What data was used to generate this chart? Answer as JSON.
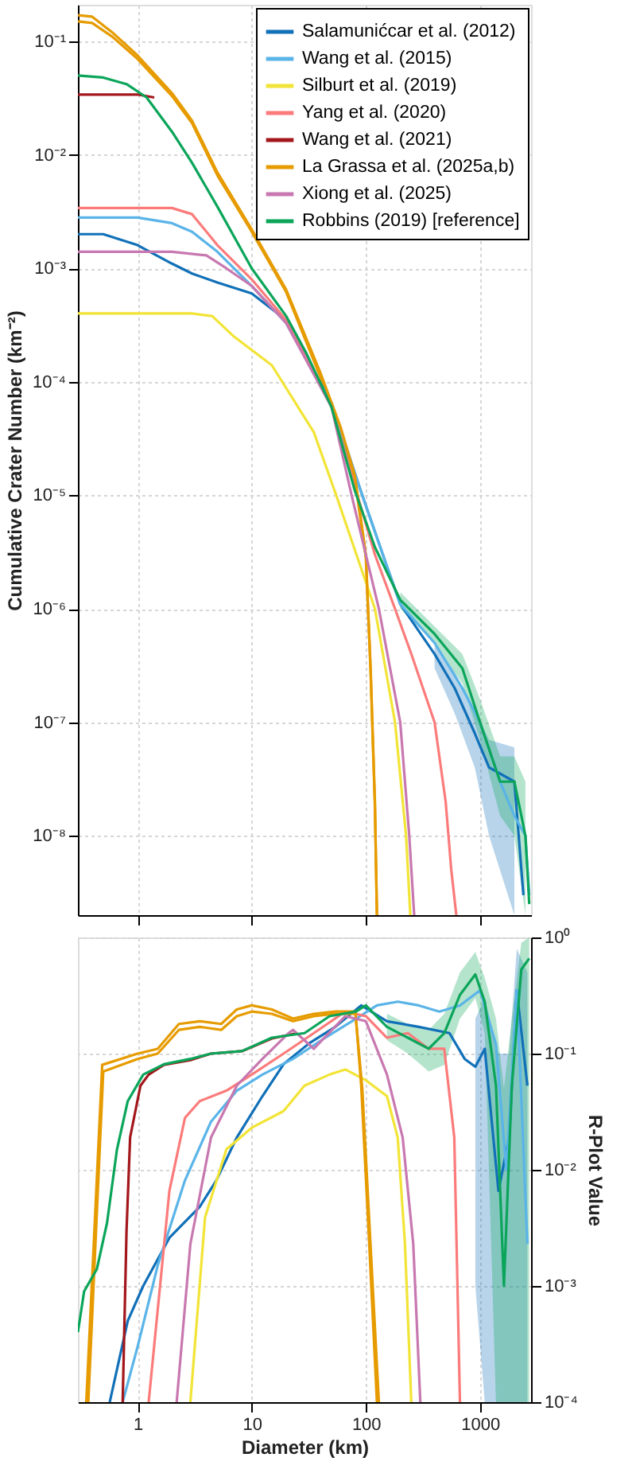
{
  "chart_data": [
    {
      "type": "line",
      "ylabel": "Cumulative Crater Number (km⁻²)",
      "log": "xy",
      "grid": true,
      "legend": "top right",
      "tick_labels": "y",
      "xlim": [
        0.3,
        2800
      ],
      "xticks": [
        1,
        10,
        100,
        1000
      ],
      "ylim": [
        2e-09,
        0.21
      ],
      "yticks": [
        {
          "value": 0.1,
          "label": "10⁻¹"
        },
        {
          "value": 0.01,
          "label": "10⁻²"
        },
        {
          "value": 0.001,
          "label": "10⁻³"
        },
        {
          "value": 0.0001,
          "label": "10⁻⁴"
        },
        {
          "value": 1e-05,
          "label": "10⁻⁵"
        },
        {
          "value": 1e-06,
          "label": "10⁻⁶"
        },
        {
          "value": 1e-07,
          "label": "10⁻⁷"
        },
        {
          "value": 1e-08,
          "label": "10⁻⁸"
        }
      ],
      "series": [
        {
          "name": "Salamunićcar et al. (2012)",
          "color": "#1170b8",
          "x": [
            0.3,
            0.5,
            1,
            2,
            3,
            5,
            10,
            20,
            50,
            90,
            150,
            200,
            400,
            600,
            900,
            1200,
            2000,
            2400
          ],
          "values": [
            0.002,
            0.002,
            0.0016,
            0.0011,
            0.0009,
            0.00075,
            0.0006,
            0.00035,
            6.5e-05,
            1.1e-05,
            2.5e-06,
            1.1e-06,
            4e-07,
            2e-07,
            8e-08,
            4e-08,
            3e-08,
            3e-09
          ],
          "lower": [
            null,
            null,
            null,
            null,
            null,
            null,
            null,
            null,
            null,
            null,
            null,
            null,
            3e-07,
            1.2e-07,
            4e-08,
            1e-08,
            2e-09,
            null
          ],
          "upper": [
            null,
            null,
            null,
            null,
            null,
            null,
            null,
            null,
            null,
            null,
            null,
            null,
            5e-07,
            2.8e-07,
            1.3e-07,
            7e-08,
            6e-08,
            null
          ]
        },
        {
          "name": "Wang et al. (2015)",
          "color": "#5ab4e8",
          "x": [
            0.3,
            1,
            2,
            3,
            5,
            10,
            20,
            50,
            90,
            150,
            200,
            400,
            700,
            1000,
            1500,
            2000,
            2500,
            2700
          ],
          "values": [
            0.0028,
            0.0028,
            0.0025,
            0.0021,
            0.0014,
            0.0007,
            0.00033,
            6.5e-05,
            1.1e-05,
            2.5e-06,
            1.1e-06,
            5e-07,
            2e-07,
            1e-07,
            3e-08,
            1.5e-08,
            1e-08,
            3e-09
          ]
        },
        {
          "name": "Silburt et al. (2019)",
          "color": "#f2e436",
          "x": [
            0.3,
            3,
            4.5,
            7,
            15,
            35,
            55,
            120,
            180,
            225,
            245
          ],
          "values": [
            0.0004,
            0.0004,
            0.00038,
            0.00025,
            0.00014,
            3.6e-05,
            1e-05,
            1e-06,
            1e-07,
            1e-08,
            2e-09
          ]
        },
        {
          "name": "Yang et al. (2020)",
          "color": "#fb7b7b",
          "x": [
            0.3,
            2,
            3,
            5,
            10,
            20,
            50,
            80,
            120,
            180,
            250,
            400,
            500,
            560,
            620
          ],
          "values": [
            0.0034,
            0.0034,
            0.003,
            0.0016,
            0.0008,
            0.00035,
            6e-05,
            1.2e-05,
            3e-06,
            1e-06,
            4e-07,
            1e-07,
            2e-08,
            5e-09,
            2e-09
          ]
        },
        {
          "name": "Wang et al. (2021)",
          "color": "#a3161b",
          "x": [
            0.3,
            1,
            1.4
          ],
          "values": [
            0.034,
            0.034,
            0.032
          ]
        },
        {
          "name": "La Grassa et al. (2025a,b)",
          "color": "#e69b00",
          "x": [
            0.3,
            0.4,
            0.6,
            1,
            2,
            3,
            5,
            10,
            20,
            40,
            60,
            80,
            100,
            110,
            120,
            125
          ],
          "values": [
            0.17,
            0.165,
            0.12,
            0.075,
            0.035,
            0.02,
            0.007,
            0.0022,
            0.00065,
            0.00012,
            4e-05,
            1.5e-05,
            3e-06,
            3e-07,
            2e-08,
            2e-09
          ]
        },
        {
          "color": "#e69b00",
          "x": [
            0.3,
            0.4,
            0.6,
            1,
            2,
            3,
            5,
            10,
            20,
            40,
            60,
            80,
            100,
            110,
            120,
            125
          ],
          "values": [
            0.15,
            0.145,
            0.11,
            0.07,
            0.033,
            0.019,
            0.0066,
            0.0021,
            0.00062,
            0.00011,
            3.8e-05,
            1.4e-05,
            2.8e-06,
            2.8e-07,
            1.8e-08,
            2e-09
          ]
        },
        {
          "name": "Xiong et al. (2025)",
          "color": "#c878b0",
          "x": [
            0.3,
            2,
            4,
            6,
            10,
            20,
            50,
            75,
            130,
            200,
            240,
            265
          ],
          "values": [
            0.0014,
            0.0014,
            0.0013,
            0.001,
            0.0007,
            0.00033,
            6e-05,
            1e-05,
            1e-06,
            1e-07,
            1e-08,
            2e-09
          ]
        },
        {
          "name": "Robbins (2019) [reference]",
          "color": "#0ba55a",
          "x": [
            0.3,
            0.5,
            0.8,
            1.2,
            2,
            3,
            5,
            10,
            20,
            30,
            50,
            80,
            120,
            200,
            400,
            700,
            1000,
            1500,
            2000,
            2500,
            2700
          ],
          "values": [
            0.05,
            0.048,
            0.042,
            0.032,
            0.016,
            0.0085,
            0.0035,
            0.001,
            0.00038,
            0.00018,
            6e-05,
            1.1e-05,
            3.5e-06,
            1.2e-06,
            6e-07,
            3e-07,
            1e-07,
            3e-08,
            3e-08,
            1e-08,
            2.5e-09
          ],
          "lower": [
            null,
            null,
            null,
            null,
            null,
            null,
            null,
            null,
            null,
            null,
            null,
            null,
            null,
            1e-06,
            5e-07,
            2.2e-07,
            7e-08,
            1.5e-08,
            1e-08,
            2e-09,
            null
          ],
          "upper": [
            null,
            null,
            null,
            null,
            null,
            null,
            null,
            null,
            null,
            null,
            null,
            null,
            null,
            1.4e-06,
            7e-07,
            4e-07,
            1.6e-07,
            5e-08,
            5e-08,
            3e-08,
            null
          ]
        }
      ]
    },
    {
      "type": "line",
      "xlabel": "Diameter (km)",
      "ylabel": "R-Plot Value",
      "log": "xy",
      "grid": true,
      "xlim": [
        0.3,
        2800
      ],
      "xticks": [
        1,
        10,
        100,
        1000
      ],
      "ylim": [
        0.0001,
        1
      ],
      "yticks": [
        {
          "value": 1,
          "label": "10⁰"
        },
        {
          "value": 0.1,
          "label": "10⁻¹"
        },
        {
          "value": 0.01,
          "label": "10⁻²"
        },
        {
          "value": 0.001,
          "label": "10⁻³"
        },
        {
          "value": 0.0001,
          "label": "10⁻⁴"
        }
      ],
      "series": [
        {
          "color": "#1170b8",
          "x": [
            0.57,
            0.82,
            1.12,
            1.9,
            3.5,
            4.9,
            7.4,
            12.4,
            19,
            32,
            54,
            91,
            153,
            290,
            540,
            734,
            910,
            1100,
            1450,
            1800,
            2100,
            2600
          ],
          "values": [
            0.0001,
            0.0005,
            0.001,
            0.0026,
            0.0048,
            0.0081,
            0.019,
            0.043,
            0.081,
            0.123,
            0.17,
            0.26,
            0.19,
            0.17,
            0.15,
            0.09,
            0.077,
            0.11,
            0.0066,
            0.019,
            0.35,
            0.053
          ],
          "lower": [
            null,
            null,
            null,
            null,
            null,
            null,
            null,
            null,
            null,
            null,
            null,
            null,
            null,
            null,
            null,
            null,
            0.001,
            0.0001,
            0.0001,
            0.0001,
            0.0001,
            0.0001
          ],
          "upper": [
            null,
            null,
            null,
            null,
            null,
            null,
            null,
            null,
            null,
            null,
            null,
            null,
            null,
            null,
            null,
            null,
            0.2,
            0.3,
            0.1,
            0.1,
            0.8,
            0.5
          ]
        },
        {
          "color": "#5ab4e8",
          "x": [
            0.74,
            1,
            1.5,
            2.6,
            4.4,
            7.4,
            12.4,
            23,
            44,
            82,
            125,
            190,
            290,
            440,
            667,
            1000,
            1380,
            1700,
            2100,
            2600
          ],
          "values": [
            0.0001,
            0.0003,
            0.0015,
            0.0081,
            0.026,
            0.048,
            0.066,
            0.09,
            0.137,
            0.2,
            0.26,
            0.28,
            0.26,
            0.23,
            0.26,
            0.35,
            0.12,
            0.01,
            0.35,
            0.0023
          ]
        },
        {
          "color": "#f2e436",
          "x": [
            2.9,
            3.9,
            6,
            10,
            19,
            29,
            48,
            66,
            100,
            153,
            190,
            220,
            250
          ],
          "values": [
            0.0001,
            0.0039,
            0.015,
            0.023,
            0.032,
            0.053,
            0.066,
            0.073,
            0.059,
            0.043,
            0.019,
            0.0023,
            0.0001
          ]
        },
        {
          "color": "#fb7b7b",
          "x": [
            1.25,
            1.9,
            2.6,
            3.5,
            6,
            10,
            19,
            35,
            66,
            100,
            153,
            233,
            355,
            486,
            595,
            667
          ],
          "values": [
            0.0001,
            0.0066,
            0.028,
            0.039,
            0.048,
            0.066,
            0.1,
            0.15,
            0.23,
            0.21,
            0.137,
            0.15,
            0.11,
            0.11,
            0.019,
            0.0001
          ]
        },
        {
          "color": "#a3161b",
          "x": [
            0.74,
            0.8,
            0.86,
            1.06,
            1.25,
            1.7,
            2.9,
            4.4,
            8.2,
            15,
            25
          ],
          "values": [
            0.0001,
            0.003,
            0.019,
            0.053,
            0.066,
            0.08,
            0.088,
            0.1,
            0.105,
            0.135,
            0.15
          ]
        },
        {
          "color": "#e69b00",
          "x": [
            0.355,
            0.49,
            1,
            1.5,
            2.3,
            3.5,
            5.4,
            7.4,
            10,
            15,
            23,
            35,
            54,
            81,
            91,
            107,
            125
          ],
          "values": [
            0.0001,
            0.08,
            0.1,
            0.11,
            0.18,
            0.19,
            0.18,
            0.24,
            0.26,
            0.24,
            0.2,
            0.22,
            0.23,
            0.23,
            0.053,
            0.0023,
            0.0001
          ]
        },
        {
          "color": "#e69b00",
          "x": [
            0.37,
            0.5,
            1,
            1.5,
            2.3,
            3.5,
            5.4,
            7.4,
            10,
            15,
            23,
            35,
            54,
            81,
            93,
            110,
            130
          ],
          "values": [
            0.0001,
            0.07,
            0.09,
            0.1,
            0.16,
            0.17,
            0.16,
            0.21,
            0.23,
            0.22,
            0.19,
            0.21,
            0.22,
            0.22,
            0.05,
            0.0022,
            0.0001
          ]
        },
        {
          "color": "#c878b0",
          "x": [
            2.2,
            2.9,
            4.4,
            7.4,
            12.4,
            21,
            23,
            35,
            66,
            100,
            153,
            210,
            260,
            300
          ],
          "values": [
            0.0001,
            0.0023,
            0.019,
            0.053,
            0.09,
            0.15,
            0.16,
            0.11,
            0.21,
            0.19,
            0.066,
            0.019,
            0.0023,
            0.0001
          ]
        },
        {
          "color": "#0ba55a",
          "x": [
            0.3,
            0.34,
            0.44,
            0.54,
            0.66,
            0.82,
            1.12,
            1.7,
            2.9,
            4.4,
            8.2,
            15,
            29,
            48,
            82,
            100,
            153,
            233,
            355,
            486,
            667,
            910,
            1100,
            1380,
            1620,
            1900,
            2300,
            2700
          ],
          "values": [
            0.0004,
            0.0009,
            0.0014,
            0.0035,
            0.015,
            0.039,
            0.066,
            0.081,
            0.09,
            0.1,
            0.105,
            0.137,
            0.15,
            0.21,
            0.23,
            0.26,
            0.17,
            0.137,
            0.11,
            0.15,
            0.32,
            0.48,
            0.28,
            0.053,
            0.001,
            0.053,
            0.53,
            0.66
          ],
          "lower": [
            null,
            null,
            null,
            null,
            null,
            null,
            null,
            null,
            null,
            null,
            null,
            null,
            null,
            null,
            null,
            null,
            0.13,
            0.1,
            0.07,
            0.08,
            0.2,
            0.3,
            0.15,
            0.0001,
            0.0001,
            0.0001,
            0.0001,
            0.0001
          ],
          "upper": [
            null,
            null,
            null,
            null,
            null,
            null,
            null,
            null,
            null,
            null,
            null,
            null,
            null,
            null,
            null,
            null,
            0.22,
            0.18,
            0.16,
            0.22,
            0.5,
            0.75,
            0.45,
            0.2,
            0.05,
            0.2,
            0.9,
            1
          ]
        }
      ]
    }
  ]
}
